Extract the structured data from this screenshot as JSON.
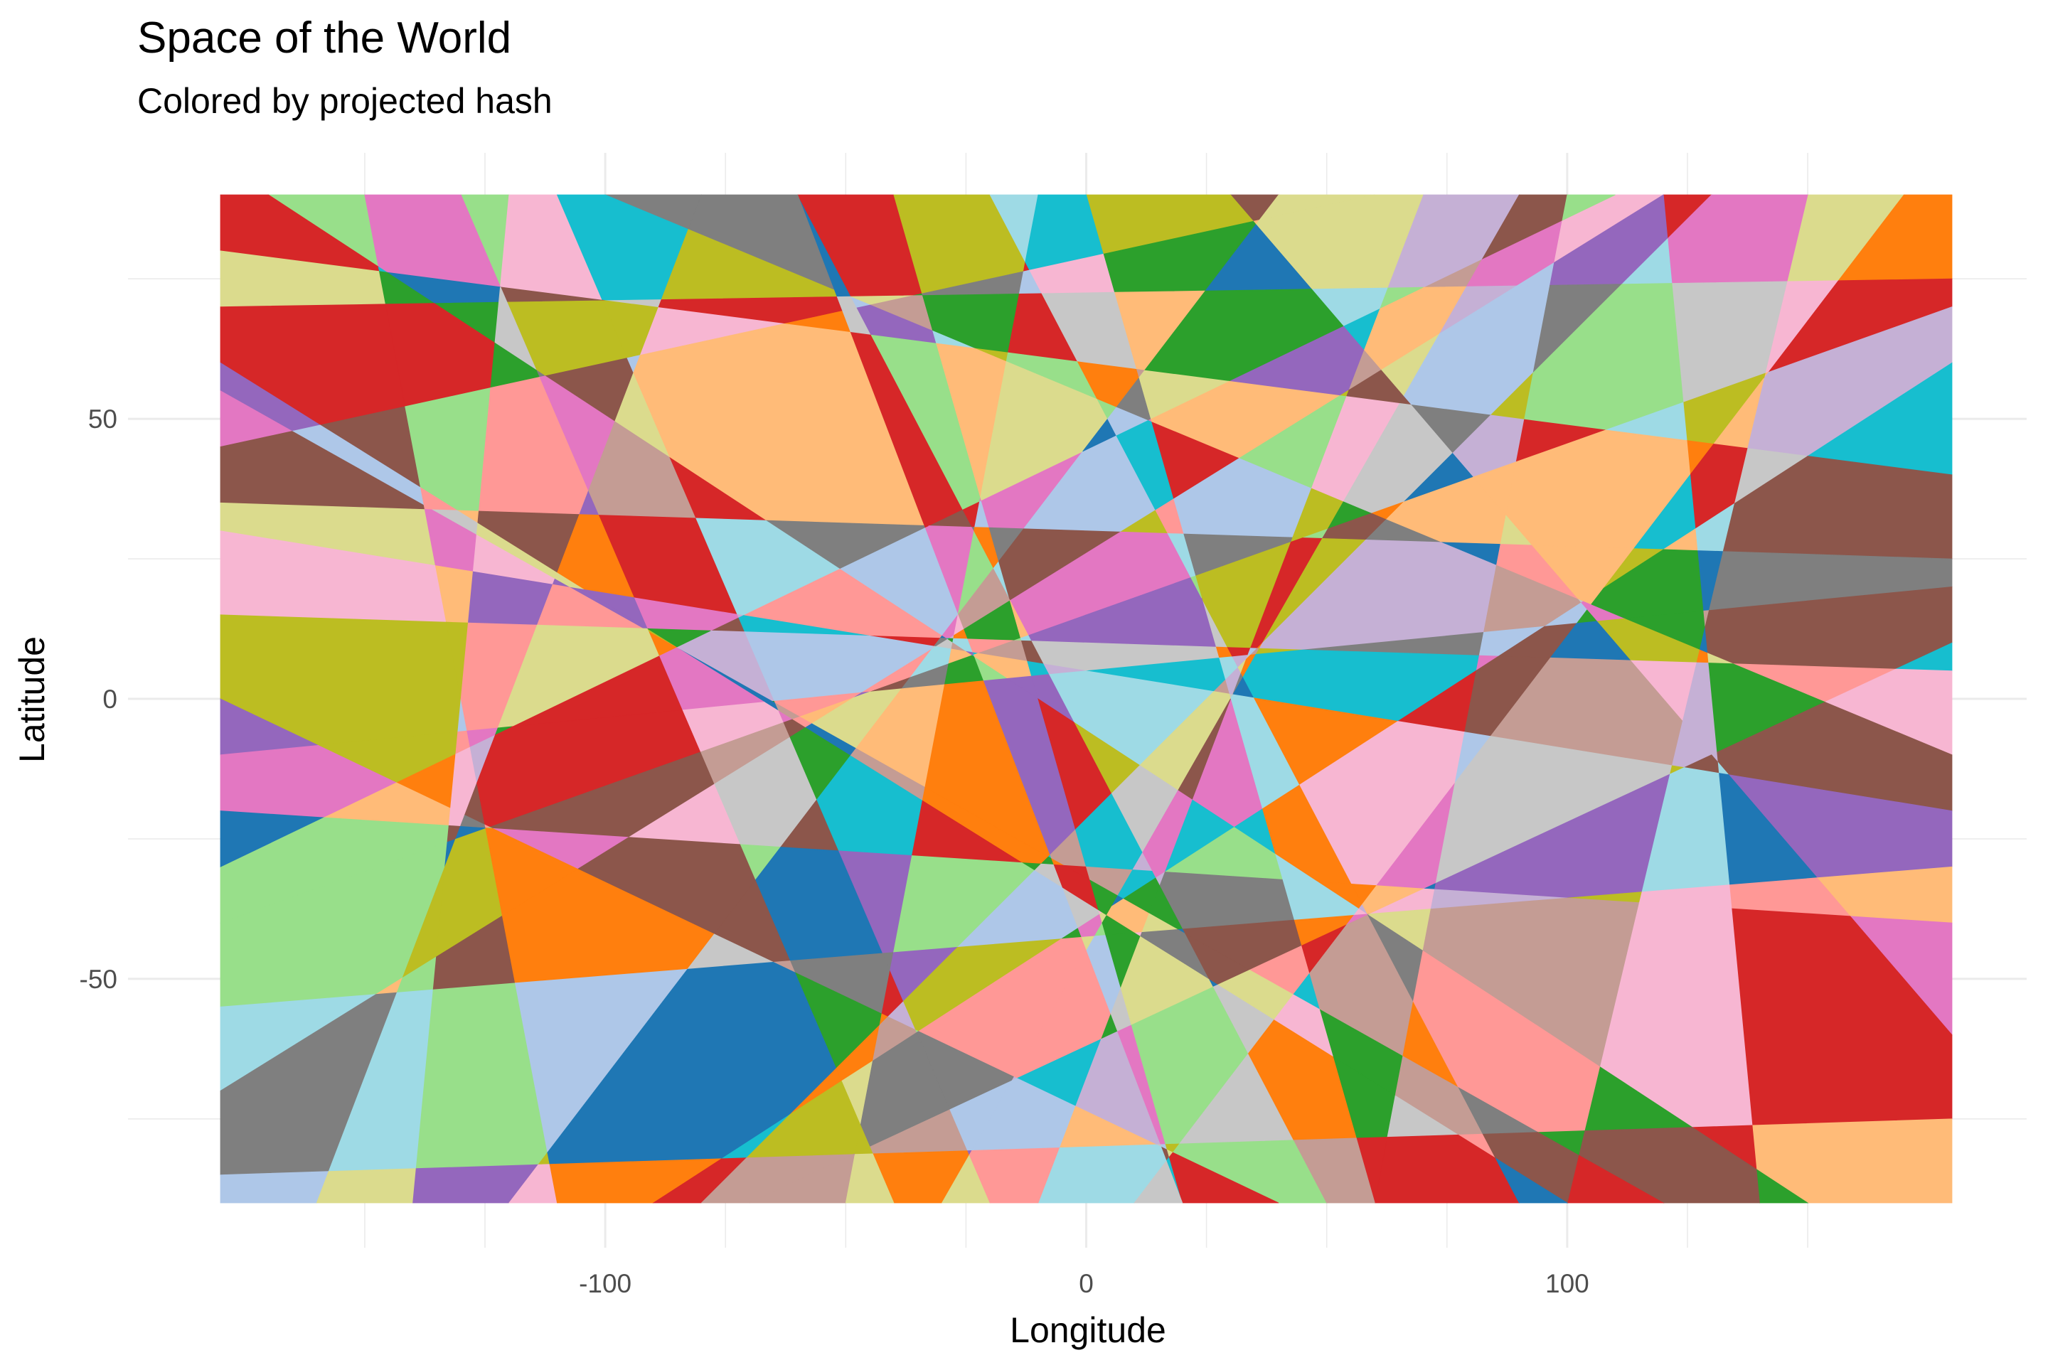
{
  "chart_data": {
    "type": "heatmap",
    "title": "Space of the World",
    "subtitle": "Colored by projected hash",
    "xlabel": "Longitude",
    "ylabel": "Latitude",
    "xlim": [
      -180,
      180
    ],
    "ylim": [
      -90,
      90
    ],
    "x_ticks": [
      -100,
      0,
      100
    ],
    "x_tick_labels": [
      "-100",
      "0",
      "100"
    ],
    "y_ticks": [
      -50,
      0,
      50
    ],
    "y_tick_labels": [
      "-50",
      "0",
      "50"
    ],
    "grid": true,
    "legend": "none",
    "palette": [
      "#1f77b4",
      "#aec7e8",
      "#ff7f0e",
      "#ffbb78",
      "#2ca02c",
      "#98df8a",
      "#d62728",
      "#ff9896",
      "#9467bd",
      "#c5b0d5",
      "#8c564b",
      "#c49c94",
      "#e377c2",
      "#f7b6d2",
      "#7f7f7f",
      "#c7c7c7",
      "#bcbd22",
      "#dbdb8d",
      "#17becf",
      "#9edae5"
    ],
    "cut_lines": [
      [
        [
          -180,
          -40
        ],
        [
          180,
          70
        ]
      ],
      [
        [
          -170,
          90
        ],
        [
          150,
          -90
        ]
      ],
      [
        [
          -180,
          15
        ],
        [
          180,
          5
        ]
      ],
      [
        [
          -120,
          -90
        ],
        [
          40,
          90
        ]
      ],
      [
        [
          -60,
          90
        ],
        [
          20,
          -90
        ]
      ],
      [
        [
          -180,
          60
        ],
        [
          100,
          -90
        ]
      ],
      [
        [
          -90,
          -90
        ],
        [
          180,
          60
        ]
      ],
      [
        [
          -180,
          -70
        ],
        [
          120,
          90
        ]
      ],
      [
        [
          0,
          90
        ],
        [
          60,
          -90
        ]
      ],
      [
        [
          -180,
          30
        ],
        [
          180,
          -20
        ]
      ],
      [
        [
          -140,
          -90
        ],
        [
          -120,
          90
        ]
      ],
      [
        [
          -30,
          -90
        ],
        [
          90,
          90
        ]
      ],
      [
        [
          60,
          -90
        ],
        [
          100,
          90
        ]
      ],
      [
        [
          -180,
          -20
        ],
        [
          180,
          -40
        ]
      ],
      [
        [
          -100,
          90
        ],
        [
          180,
          -10
        ]
      ],
      [
        [
          -180,
          80
        ],
        [
          180,
          40
        ]
      ],
      [
        [
          -50,
          -90
        ],
        [
          -10,
          90
        ]
      ],
      [
        [
          20,
          -90
        ],
        [
          -40,
          90
        ]
      ],
      [
        [
          -180,
          -55
        ],
        [
          180,
          -30
        ]
      ],
      [
        [
          120,
          90
        ],
        [
          140,
          -90
        ]
      ],
      [
        [
          -180,
          45
        ],
        [
          60,
          90
        ]
      ],
      [
        [
          -70,
          -90
        ],
        [
          180,
          10
        ]
      ],
      [
        [
          -160,
          -90
        ],
        [
          -80,
          90
        ]
      ],
      [
        [
          30,
          90
        ],
        [
          180,
          -60
        ]
      ],
      [
        [
          -180,
          0
        ],
        [
          40,
          -90
        ]
      ],
      [
        [
          90,
          -90
        ],
        [
          -20,
          90
        ]
      ],
      [
        [
          -180,
          70
        ],
        [
          180,
          75
        ]
      ],
      [
        [
          -110,
          -90
        ],
        [
          -150,
          90
        ]
      ],
      [
        [
          50,
          -90
        ],
        [
          -60,
          90
        ]
      ],
      [
        [
          -180,
          -85
        ],
        [
          180,
          -75
        ]
      ],
      [
        [
          150,
          90
        ],
        [
          100,
          -90
        ]
      ],
      [
        [
          -20,
          -90
        ],
        [
          -110,
          90
        ]
      ],
      [
        [
          -180,
          35
        ],
        [
          180,
          25
        ]
      ],
      [
        [
          70,
          90
        ],
        [
          -10,
          -90
        ]
      ],
      [
        [
          -180,
          -10
        ],
        [
          180,
          20
        ]
      ],
      [
        [
          10,
          -90
        ],
        [
          170,
          90
        ]
      ],
      [
        [
          -130,
          90
        ],
        [
          -40,
          -90
        ]
      ],
      [
        [
          -180,
          55
        ],
        [
          120,
          -90
        ]
      ],
      [
        [
          110,
          90
        ],
        [
          -180,
          -30
        ]
      ],
      [
        [
          -80,
          -90
        ],
        [
          130,
          90
        ]
      ]
    ]
  }
}
